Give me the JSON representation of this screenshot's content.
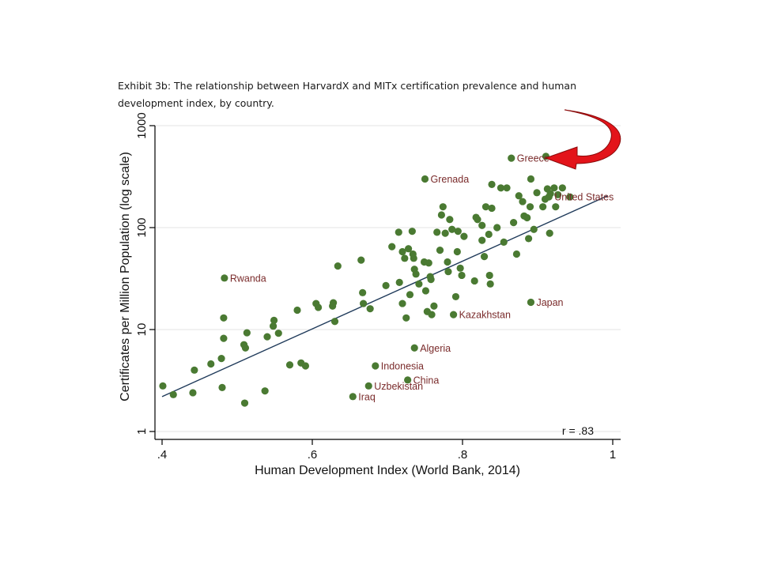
{
  "caption": "Exhibit 3b: The relationship between HarvardX and MITx certification prevalence and human development index, by country.",
  "chart_data": {
    "type": "scatter",
    "xlabel": "Human Development Index (World Bank, 2014)",
    "ylabel": "Certificates per Million Population (log scale)",
    "xlim": [
      0.4,
      1.0
    ],
    "ylim": [
      1,
      1000
    ],
    "y_scale": "log",
    "x_ticks": [
      {
        "value": 0.4,
        "label": ".4"
      },
      {
        "value": 0.6,
        "label": ".6"
      },
      {
        "value": 0.8,
        "label": ".8"
      },
      {
        "value": 1.0,
        "label": "1"
      }
    ],
    "y_ticks": [
      {
        "value": 1,
        "label": "1"
      },
      {
        "value": 10,
        "label": "10"
      },
      {
        "value": 100,
        "label": "100"
      },
      {
        "value": 1000,
        "label": "1000"
      }
    ],
    "grid": "horizontal",
    "annotation": "r = .83",
    "point_color": "#4a7a32",
    "line_color": "#1f3a5a",
    "label_color": "#7a2b2b",
    "arrow_color": "#e3141a",
    "fit_line": [
      {
        "x": 0.4,
        "y": 2.2
      },
      {
        "x": 0.993,
        "y": 205
      }
    ],
    "labeled_points": [
      {
        "name": "Greece",
        "x": 0.865,
        "y": 480
      },
      {
        "name": "Grenada",
        "x": 0.75,
        "y": 300
      },
      {
        "name": "United States",
        "x": 0.915,
        "y": 200
      },
      {
        "name": "Rwanda",
        "x": 0.483,
        "y": 32
      },
      {
        "name": "Japan",
        "x": 0.891,
        "y": 18.5
      },
      {
        "name": "Kazakhstan",
        "x": 0.788,
        "y": 14
      },
      {
        "name": "Algeria",
        "x": 0.736,
        "y": 6.6
      },
      {
        "name": "Indonesia",
        "x": 0.684,
        "y": 4.4
      },
      {
        "name": "China",
        "x": 0.727,
        "y": 3.2
      },
      {
        "name": "Uzbekistan",
        "x": 0.675,
        "y": 2.8
      },
      {
        "name": "Iraq",
        "x": 0.654,
        "y": 2.2
      }
    ],
    "points": [
      {
        "x": 0.401,
        "y": 2.8
      },
      {
        "x": 0.415,
        "y": 2.3
      },
      {
        "x": 0.441,
        "y": 2.4
      },
      {
        "x": 0.443,
        "y": 4.0
      },
      {
        "x": 0.465,
        "y": 4.6
      },
      {
        "x": 0.48,
        "y": 2.7
      },
      {
        "x": 0.479,
        "y": 5.2
      },
      {
        "x": 0.482,
        "y": 8.2
      },
      {
        "x": 0.482,
        "y": 13
      },
      {
        "x": 0.51,
        "y": 1.9
      },
      {
        "x": 0.509,
        "y": 7.1
      },
      {
        "x": 0.511,
        "y": 6.6
      },
      {
        "x": 0.513,
        "y": 9.3
      },
      {
        "x": 0.537,
        "y": 2.5
      },
      {
        "x": 0.54,
        "y": 8.5
      },
      {
        "x": 0.548,
        "y": 10.8
      },
      {
        "x": 0.549,
        "y": 12.3
      },
      {
        "x": 0.555,
        "y": 9.2
      },
      {
        "x": 0.57,
        "y": 4.5
      },
      {
        "x": 0.58,
        "y": 15.5
      },
      {
        "x": 0.585,
        "y": 4.7
      },
      {
        "x": 0.591,
        "y": 4.4
      },
      {
        "x": 0.605,
        "y": 18
      },
      {
        "x": 0.608,
        "y": 16.5
      },
      {
        "x": 0.627,
        "y": 17
      },
      {
        "x": 0.628,
        "y": 18.3
      },
      {
        "x": 0.63,
        "y": 12
      },
      {
        "x": 0.634,
        "y": 42
      },
      {
        "x": 0.665,
        "y": 48
      },
      {
        "x": 0.667,
        "y": 23
      },
      {
        "x": 0.668,
        "y": 18
      },
      {
        "x": 0.677,
        "y": 16
      },
      {
        "x": 0.698,
        "y": 27
      },
      {
        "x": 0.706,
        "y": 65
      },
      {
        "x": 0.715,
        "y": 90
      },
      {
        "x": 0.716,
        "y": 29
      },
      {
        "x": 0.72,
        "y": 58
      },
      {
        "x": 0.72,
        "y": 18
      },
      {
        "x": 0.723,
        "y": 50
      },
      {
        "x": 0.725,
        "y": 13
      },
      {
        "x": 0.728,
        "y": 62
      },
      {
        "x": 0.73,
        "y": 22
      },
      {
        "x": 0.733,
        "y": 92
      },
      {
        "x": 0.734,
        "y": 55
      },
      {
        "x": 0.735,
        "y": 50
      },
      {
        "x": 0.736,
        "y": 39
      },
      {
        "x": 0.738,
        "y": 35
      },
      {
        "x": 0.742,
        "y": 28
      },
      {
        "x": 0.749,
        "y": 46
      },
      {
        "x": 0.751,
        "y": 24
      },
      {
        "x": 0.753,
        "y": 15
      },
      {
        "x": 0.755,
        "y": 45
      },
      {
        "x": 0.757,
        "y": 33
      },
      {
        "x": 0.758,
        "y": 31
      },
      {
        "x": 0.759,
        "y": 14
      },
      {
        "x": 0.762,
        "y": 17
      },
      {
        "x": 0.766,
        "y": 90
      },
      {
        "x": 0.77,
        "y": 60
      },
      {
        "x": 0.772,
        "y": 133
      },
      {
        "x": 0.774,
        "y": 160
      },
      {
        "x": 0.777,
        "y": 88
      },
      {
        "x": 0.78,
        "y": 46
      },
      {
        "x": 0.781,
        "y": 37
      },
      {
        "x": 0.783,
        "y": 120
      },
      {
        "x": 0.786,
        "y": 96
      },
      {
        "x": 0.791,
        "y": 21
      },
      {
        "x": 0.793,
        "y": 58
      },
      {
        "x": 0.794,
        "y": 92
      },
      {
        "x": 0.797,
        "y": 40
      },
      {
        "x": 0.799,
        "y": 34
      },
      {
        "x": 0.802,
        "y": 82
      },
      {
        "x": 0.816,
        "y": 30
      },
      {
        "x": 0.818,
        "y": 126
      },
      {
        "x": 0.82,
        "y": 120
      },
      {
        "x": 0.826,
        "y": 105
      },
      {
        "x": 0.826,
        "y": 75
      },
      {
        "x": 0.829,
        "y": 52
      },
      {
        "x": 0.831,
        "y": 160
      },
      {
        "x": 0.835,
        "y": 86
      },
      {
        "x": 0.836,
        "y": 34
      },
      {
        "x": 0.837,
        "y": 28
      },
      {
        "x": 0.839,
        "y": 155
      },
      {
        "x": 0.839,
        "y": 265
      },
      {
        "x": 0.846,
        "y": 100
      },
      {
        "x": 0.851,
        "y": 245
      },
      {
        "x": 0.855,
        "y": 72
      },
      {
        "x": 0.859,
        "y": 245
      },
      {
        "x": 0.868,
        "y": 112
      },
      {
        "x": 0.872,
        "y": 55
      },
      {
        "x": 0.875,
        "y": 205
      },
      {
        "x": 0.88,
        "y": 180
      },
      {
        "x": 0.882,
        "y": 130
      },
      {
        "x": 0.886,
        "y": 125
      },
      {
        "x": 0.888,
        "y": 78
      },
      {
        "x": 0.89,
        "y": 160
      },
      {
        "x": 0.891,
        "y": 300
      },
      {
        "x": 0.895,
        "y": 96
      },
      {
        "x": 0.899,
        "y": 220
      },
      {
        "x": 0.907,
        "y": 160
      },
      {
        "x": 0.91,
        "y": 190
      },
      {
        "x": 0.911,
        "y": 500
      },
      {
        "x": 0.913,
        "y": 240
      },
      {
        "x": 0.916,
        "y": 88
      },
      {
        "x": 0.917,
        "y": 215
      },
      {
        "x": 0.922,
        "y": 245
      },
      {
        "x": 0.924,
        "y": 160
      },
      {
        "x": 0.927,
        "y": 210
      },
      {
        "x": 0.933,
        "y": 245
      },
      {
        "x": 0.943,
        "y": 200
      }
    ]
  }
}
